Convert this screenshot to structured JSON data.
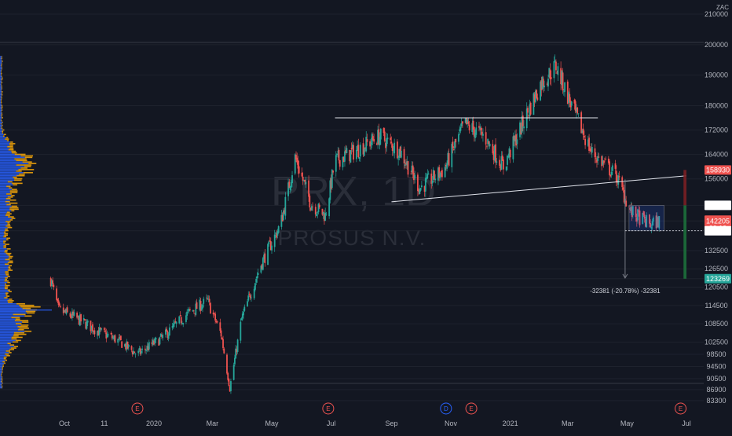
{
  "chart_data": {
    "type": "candlestick",
    "symbol": "PRX",
    "interval": "1D",
    "symbol_name": "PROSUS N.V.",
    "currency": "ZAC",
    "x_tick_labels": [
      "Oct",
      "11",
      "2020",
      "Mar",
      "May",
      "Jul",
      "Sep",
      "Nov",
      "2021",
      "Mar",
      "May",
      "Jul"
    ],
    "y_tick_labels": [
      210000,
      200000,
      190000,
      180000,
      172000,
      164000,
      156000,
      147321,
      142205,
      139001,
      132500,
      126500,
      123269,
      120500,
      114500,
      108500,
      102500,
      98500,
      94500,
      90500,
      86900,
      83300
    ],
    "ylim": [
      83300,
      210000
    ],
    "price_path": [
      {
        "date": "2019-09-17",
        "price": 123000
      },
      {
        "date": "2019-09-25",
        "price": 113000
      },
      {
        "date": "2019-10-15",
        "price": 110000
      },
      {
        "date": "2019-11-05",
        "price": 106000
      },
      {
        "date": "2019-11-25",
        "price": 103000
      },
      {
        "date": "2019-12-15",
        "price": 98500
      },
      {
        "date": "2020-01-10",
        "price": 104000
      },
      {
        "date": "2020-02-05",
        "price": 112000
      },
      {
        "date": "2020-02-25",
        "price": 116000
      },
      {
        "date": "2020-03-10",
        "price": 105000
      },
      {
        "date": "2020-03-19",
        "price": 87500
      },
      {
        "date": "2020-03-31",
        "price": 110000
      },
      {
        "date": "2020-04-20",
        "price": 128000
      },
      {
        "date": "2020-05-10",
        "price": 141000
      },
      {
        "date": "2020-05-25",
        "price": 163000
      },
      {
        "date": "2020-06-10",
        "price": 148000
      },
      {
        "date": "2020-06-25",
        "price": 144000
      },
      {
        "date": "2020-07-05",
        "price": 162000
      },
      {
        "date": "2020-07-25",
        "price": 165000
      },
      {
        "date": "2020-08-20",
        "price": 170000
      },
      {
        "date": "2020-09-10",
        "price": 165000
      },
      {
        "date": "2020-09-30",
        "price": 153000
      },
      {
        "date": "2020-10-25",
        "price": 159000
      },
      {
        "date": "2020-11-15",
        "price": 174000
      },
      {
        "date": "2020-12-05",
        "price": 170000
      },
      {
        "date": "2020-12-25",
        "price": 160000
      },
      {
        "date": "2021-01-15",
        "price": 175000
      },
      {
        "date": "2021-02-01",
        "price": 187000
      },
      {
        "date": "2021-02-17",
        "price": 193000
      },
      {
        "date": "2021-03-05",
        "price": 180000
      },
      {
        "date": "2021-03-25",
        "price": 165000
      },
      {
        "date": "2021-04-20",
        "price": 157000
      },
      {
        "date": "2021-05-05",
        "price": 145000
      },
      {
        "date": "2021-05-25",
        "price": 141000
      },
      {
        "date": "2021-06-03",
        "price": 142205
      }
    ],
    "annotations": {
      "measure_label": "-32381 (-20.78%) -32381",
      "current_price": "142205",
      "countdown": "39:19",
      "price_badges": [
        "158930",
        "147321",
        "142205",
        "139001",
        "123269"
      ],
      "trend_lines": [
        {
          "from": {
            "date": "2020-07-05",
            "price": 176000
          },
          "to": {
            "date": "2021-04-01",
            "price": 176000
          }
        },
        {
          "from": {
            "date": "2020-09-01",
            "price": 148500
          },
          "to": {
            "date": "2021-07-01",
            "price": 157000
          }
        }
      ],
      "events": [
        {
          "label": "E",
          "date": "2019-12-15",
          "color": "#ef5350"
        },
        {
          "label": "E",
          "date": "2020-06-28",
          "color": "#ef5350"
        },
        {
          "label": "D",
          "date": "2020-10-27",
          "color": "#2962ff"
        },
        {
          "label": "E",
          "date": "2020-11-22",
          "color": "#ef5350"
        },
        {
          "label": "E",
          "date": "2021-06-25",
          "color": "#ef5350"
        }
      ]
    },
    "colors": {
      "background": "#131722",
      "up": "#26a69a",
      "down": "#ef5350",
      "volume_profile_up": "#2962ff",
      "volume_profile_down": "#f0a30a",
      "grid": "#1e222d"
    }
  }
}
